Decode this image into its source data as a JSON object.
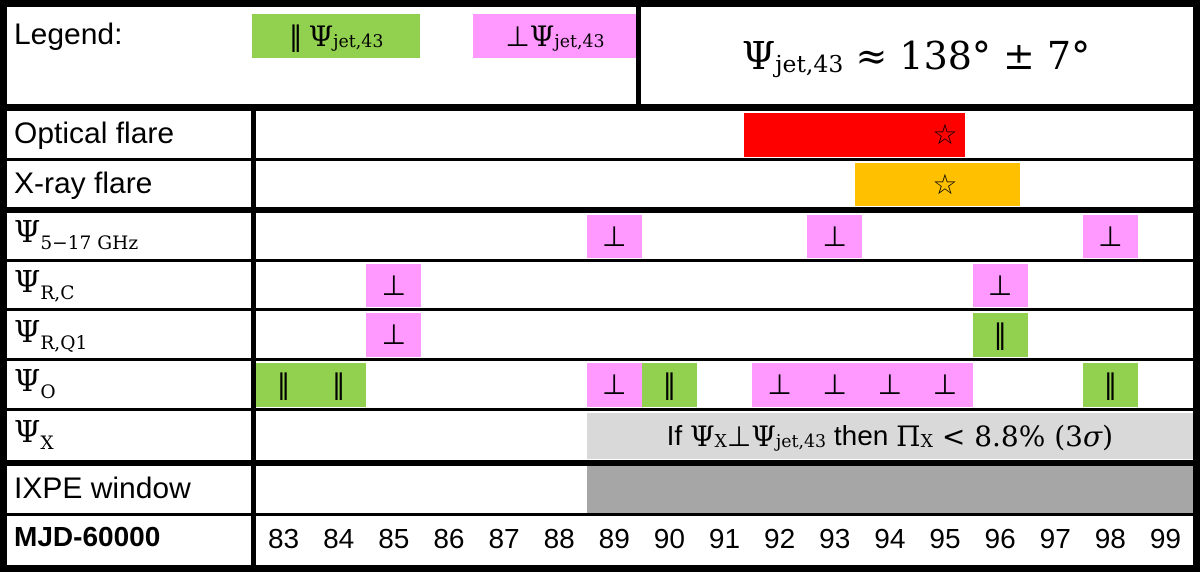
{
  "legend": {
    "label": "Legend:",
    "parallel_symbol": "∥",
    "perp_symbol": "⊥",
    "psi": "Ψ",
    "psi_sub": "jet,43",
    "angle_psi": "Ψ",
    "angle_sub": "jet,43",
    "angle_text": " ≈ 138° ± 7°"
  },
  "colors": {
    "parallel": "#92d050",
    "perp": "#ff99ff",
    "optical": "#ff0000",
    "xray": "#ffc000",
    "note_bg": "#d9d9d9",
    "ixpe": "#a6a6a6"
  },
  "rows": [
    {
      "id": "optical",
      "label": "Optical flare"
    },
    {
      "id": "xray",
      "label": "X-ray flare"
    },
    {
      "id": "radio",
      "psi": "Ψ",
      "sub": "5−17 GHz"
    },
    {
      "id": "rc",
      "psi": "Ψ",
      "sub": "R,C"
    },
    {
      "id": "rq1",
      "psi": "Ψ",
      "sub": "R,Q1"
    },
    {
      "id": "opt",
      "psi": "Ψ",
      "sub": "O"
    },
    {
      "id": "x",
      "psi": "Ψ",
      "sub": "X"
    },
    {
      "id": "ixpe",
      "label": "IXPE window"
    },
    {
      "id": "mjd",
      "label": "MJD-60000"
    }
  ],
  "ticks": [
    "83",
    "84",
    "85",
    "86",
    "87",
    "88",
    "89",
    "90",
    "91",
    "92",
    "93",
    "94",
    "95",
    "96",
    "97",
    "98",
    "99"
  ],
  "axis": {
    "min": 82.5,
    "max": 99.5
  },
  "flares": {
    "optical": {
      "start": 91.36,
      "end": 95.36,
      "star_at": 95.0,
      "star": "☆"
    },
    "xray": {
      "start": 93.36,
      "end": 96.36,
      "star_at": 95.0,
      "star": "☆"
    }
  },
  "markers": {
    "radio": [
      {
        "start": 88.5,
        "end": 89.5,
        "type": "perp",
        "symbol": "⊥"
      },
      {
        "start": 92.5,
        "end": 93.5,
        "type": "perp",
        "symbol": "⊥"
      },
      {
        "start": 97.5,
        "end": 98.5,
        "type": "perp",
        "symbol": "⊥"
      }
    ],
    "rc": [
      {
        "start": 84.5,
        "end": 85.5,
        "type": "perp",
        "symbol": "⊥"
      },
      {
        "start": 95.5,
        "end": 96.5,
        "type": "perp",
        "symbol": "⊥"
      }
    ],
    "rq1": [
      {
        "start": 84.5,
        "end": 85.5,
        "type": "perp",
        "symbol": "⊥"
      },
      {
        "start": 95.5,
        "end": 96.5,
        "type": "parallel",
        "symbol": "∥"
      }
    ],
    "opt": [
      {
        "start": 82.5,
        "end": 84.5,
        "type": "parallel",
        "symbols": [
          {
            "at": 83.0,
            "symbol": "∥"
          },
          {
            "at": 84.0,
            "symbol": "∥"
          }
        ]
      },
      {
        "start": 88.5,
        "end": 89.5,
        "type": "perp",
        "symbol": "⊥"
      },
      {
        "start": 89.5,
        "end": 90.5,
        "type": "parallel",
        "symbol": "∥"
      },
      {
        "start": 91.5,
        "end": 95.5,
        "type": "perp",
        "symbols": [
          {
            "at": 92.0,
            "symbol": "⊥"
          },
          {
            "at": 93.0,
            "symbol": "⊥"
          },
          {
            "at": 94.0,
            "symbol": "⊥"
          },
          {
            "at": 95.0,
            "symbol": "⊥"
          }
        ]
      },
      {
        "start": 97.5,
        "end": 98.5,
        "type": "parallel",
        "symbol": "∥"
      }
    ]
  },
  "xnote": {
    "start": 88.5,
    "end": 99.5,
    "prefix": "If ",
    "psi1": "Ψ",
    "sub1": "X",
    "perp": "⊥",
    "psi2": "Ψ",
    "sub2": "jet,43",
    "mid": " then ",
    "pi": "Π",
    "sub3": "X",
    "tail": " < 8.8% (3",
    "sigma": "σ",
    "close": ")"
  },
  "ixpe": {
    "start": 88.5,
    "end": 99.5
  }
}
